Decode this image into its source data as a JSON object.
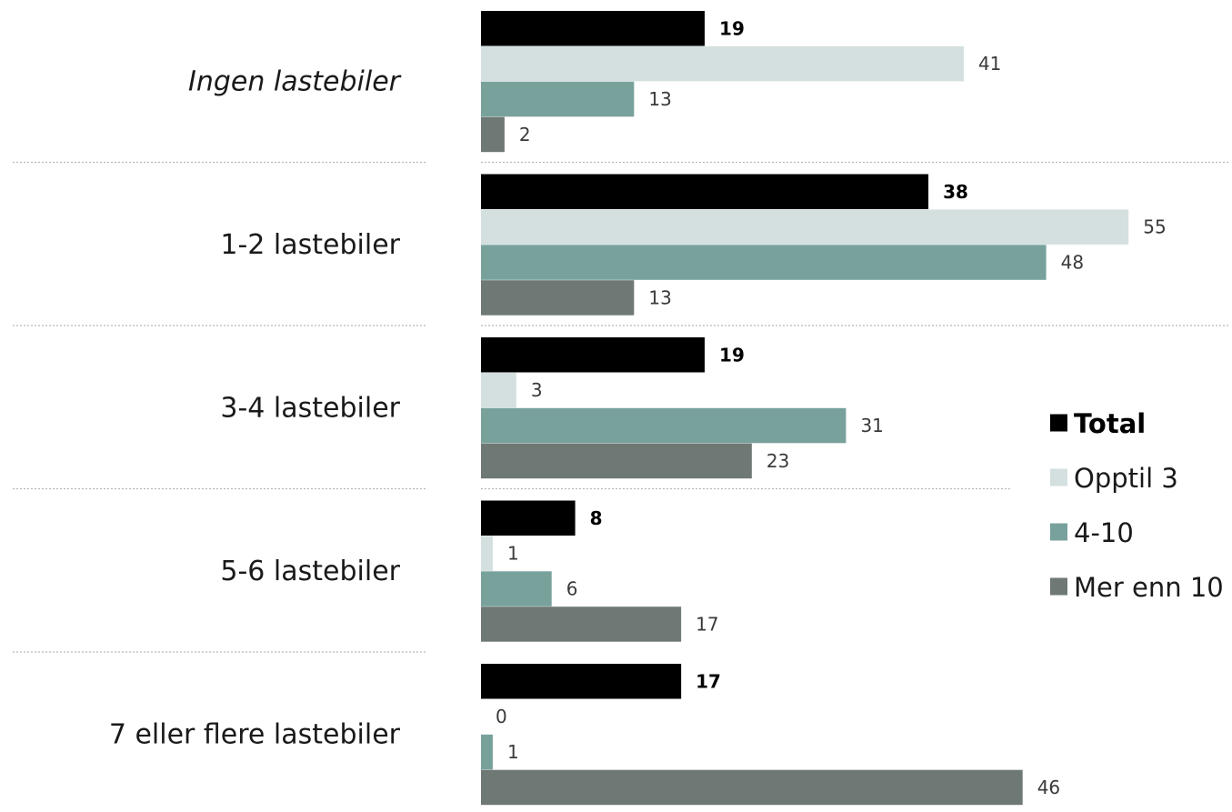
{
  "chart_data": {
    "type": "bar",
    "orientation": "horizontal",
    "categories": [
      "Ingen lastebiler",
      "1-2 lastebiler",
      "3-4 lastebiler",
      "5-6 lastebiler",
      "7 eller flere lastebiler"
    ],
    "series": [
      {
        "name": "Total",
        "values": [
          19,
          38,
          19,
          8,
          17
        ],
        "color": "#000000"
      },
      {
        "name": "Opptil 3",
        "values": [
          41,
          55,
          3,
          1,
          0
        ],
        "color": "#d3e0df"
      },
      {
        "name": "4-10",
        "values": [
          13,
          48,
          31,
          6,
          1
        ],
        "color": "#78a19c"
      },
      {
        "name": "Mer enn 10",
        "values": [
          2,
          13,
          23,
          17,
          46
        ],
        "color": "#6e7874"
      }
    ],
    "xlim": [
      0,
      60
    ],
    "grid": false,
    "legend_position": "right",
    "title": "",
    "xlabel": "",
    "ylabel": ""
  }
}
